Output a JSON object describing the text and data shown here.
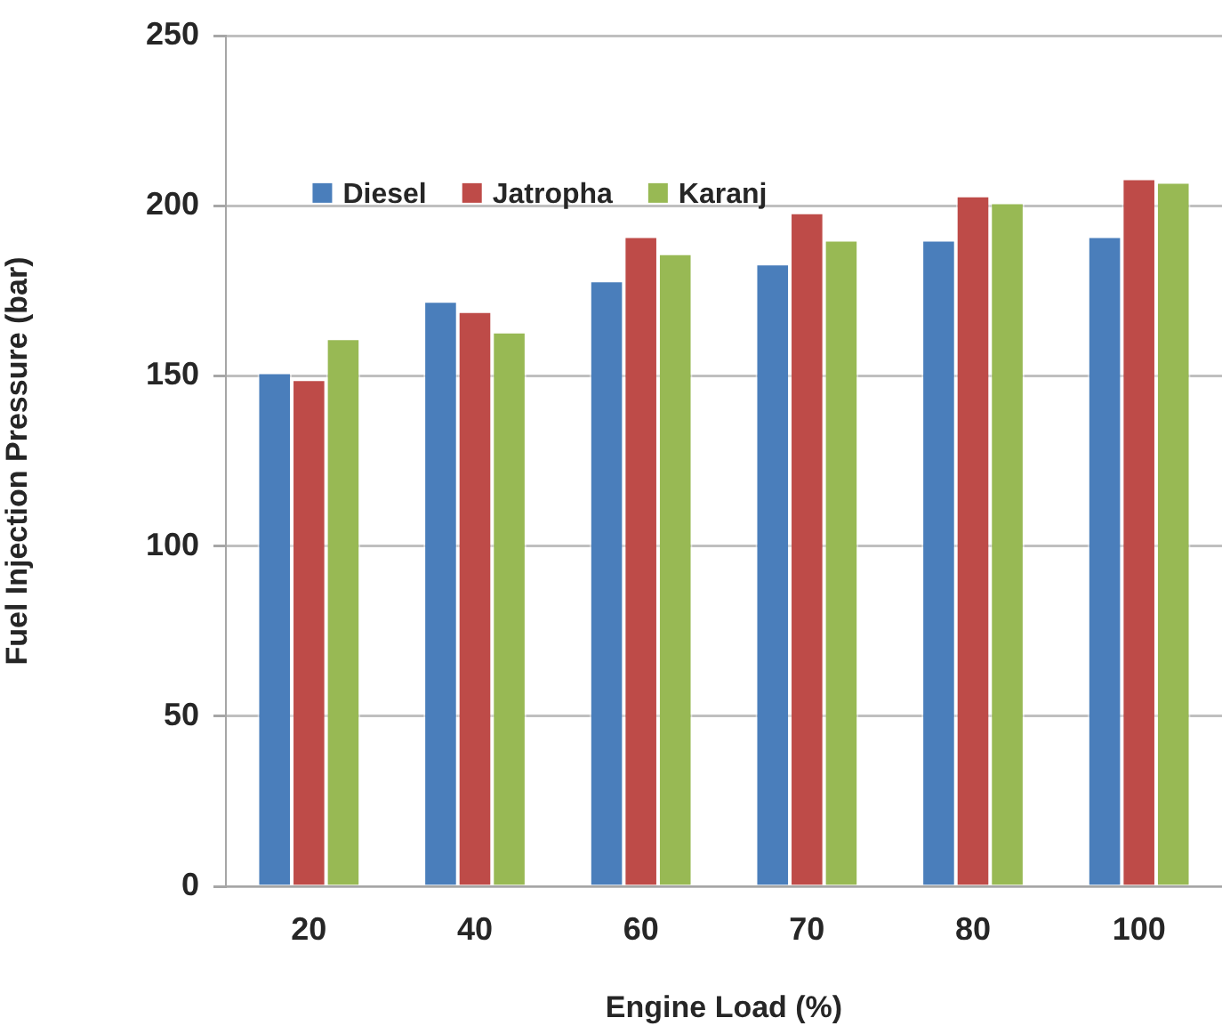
{
  "chart_data": {
    "type": "bar",
    "xlabel": "Engine Load (%)",
    "ylabel": "Fuel Injection Pressure (bar)",
    "categories": [
      "20",
      "40",
      "60",
      "70",
      "80",
      "100"
    ],
    "series": [
      {
        "name": "Diesel",
        "color": "#4a7ebb",
        "values": [
          151,
          172,
          178,
          183,
          190,
          191
        ]
      },
      {
        "name": "Jatropha",
        "color": "#be4b48",
        "values": [
          149,
          169,
          191,
          198,
          203,
          208
        ]
      },
      {
        "name": "Karanj",
        "color": "#98b954",
        "values": [
          161,
          163,
          186,
          190,
          201,
          207
        ]
      }
    ],
    "ylim": [
      0,
      250
    ],
    "yticks": [
      0,
      50,
      100,
      150,
      200,
      250
    ],
    "grid": "y",
    "legend": "top left"
  }
}
